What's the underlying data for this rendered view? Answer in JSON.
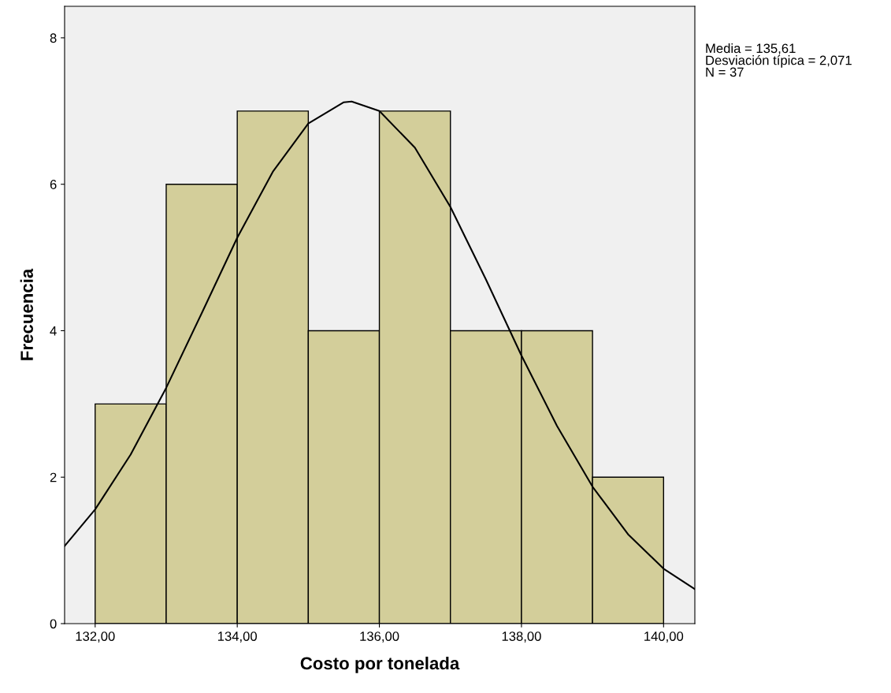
{
  "chart_data": {
    "type": "histogram",
    "xlabel": "Costo por tonelada",
    "ylabel": "Frecuencia",
    "bins": [
      132,
      133,
      134,
      135,
      136,
      137,
      138,
      139,
      140
    ],
    "values": [
      3,
      6,
      7,
      4,
      7,
      4,
      4,
      2
    ],
    "color": "#d3ce9a",
    "series": [
      {
        "type": "line",
        "color": "#000000",
        "x": [
          131.57,
          132,
          132.5,
          133,
          133.5,
          134,
          134.5,
          135,
          135.5,
          135.61,
          136,
          136.5,
          137,
          137.5,
          138,
          138.5,
          139,
          139.5,
          140,
          140.44
        ],
        "values": [
          1.06,
          1.56,
          2.31,
          3.22,
          4.24,
          5.27,
          6.17,
          6.83,
          7.12,
          7.13,
          7.0,
          6.5,
          5.69,
          4.7,
          3.66,
          2.7,
          1.87,
          1.22,
          0.75,
          0.47
        ]
      }
    ],
    "xlim": [
      131.57,
      140.44
    ],
    "ylim": [
      0,
      8.43
    ],
    "xticks": [
      {
        "value": 132,
        "label": "132,00"
      },
      {
        "value": 134,
        "label": "134,00"
      },
      {
        "value": 136,
        "label": "136,00"
      },
      {
        "value": 138,
        "label": "138,00"
      },
      {
        "value": 140,
        "label": "140,00"
      }
    ],
    "yticks": [
      0,
      2,
      4,
      6,
      8
    ],
    "grid": false,
    "annotations": [
      "Media = 135,61\nDesviación típica = 2,071\nN = 37"
    ]
  }
}
